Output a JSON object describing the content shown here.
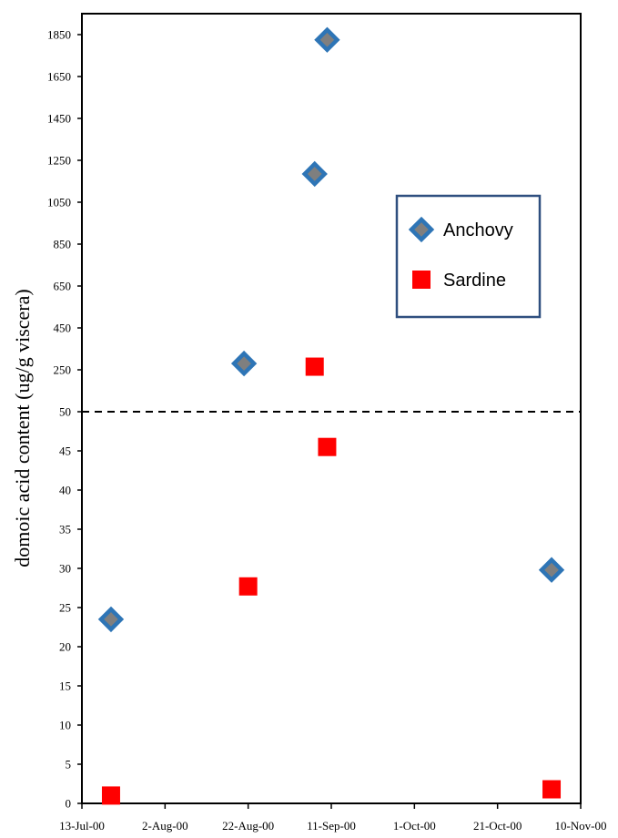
{
  "chart_data": {
    "type": "scatter",
    "ylabel": "domoic acid content (ug/g viscera)",
    "x_axis": {
      "type": "date",
      "range": [
        "2000-07-13",
        "2000-11-10"
      ],
      "ticks": [
        {
          "date": "2000-07-13",
          "label": "13-Jul-00"
        },
        {
          "date": "2000-08-02",
          "label": "2-Aug-00"
        },
        {
          "date": "2000-08-22",
          "label": "22-Aug-00"
        },
        {
          "date": "2000-09-11",
          "label": "11-Sep-00"
        },
        {
          "date": "2000-10-01",
          "label": "1-Oct-00"
        },
        {
          "date": "2000-10-21",
          "label": "21-Oct-00"
        },
        {
          "date": "2000-11-10",
          "label": "10-Nov-00"
        }
      ]
    },
    "y_axis": {
      "type": "broken",
      "break_at": 50,
      "lower_range": [
        0,
        50
      ],
      "upper_range": [
        50,
        1950
      ],
      "lower_ticks": [
        "0",
        "5",
        "10",
        "15",
        "20",
        "25",
        "30",
        "35",
        "40",
        "45",
        "50"
      ],
      "upper_ticks": [
        "250",
        "450",
        "650",
        "850",
        "1050",
        "1250",
        "1450",
        "1650",
        "1850"
      ],
      "break_line": "dashed"
    },
    "legend": {
      "position": "right",
      "entries": [
        "Anchovy",
        "Sardine"
      ]
    },
    "series": [
      {
        "name": "Anchovy",
        "marker": "diamond",
        "color": "#2E75B6",
        "points": [
          {
            "x": "2000-07-20",
            "y": 23.5
          },
          {
            "x": "2000-08-21",
            "y": 280
          },
          {
            "x": "2000-09-07",
            "y": 1185
          },
          {
            "x": "2000-09-10",
            "y": 1825
          },
          {
            "x": "2000-11-03",
            "y": 29.8
          }
        ]
      },
      {
        "name": "Sardine",
        "marker": "square",
        "color": "#FF0000",
        "points": [
          {
            "x": "2000-07-20",
            "y": 1
          },
          {
            "x": "2000-08-22",
            "y": 27.7
          },
          {
            "x": "2000-09-07",
            "y": 265
          },
          {
            "x": "2000-09-10",
            "y": 45.5
          },
          {
            "x": "2000-11-03",
            "y": 1.8
          }
        ]
      }
    ]
  }
}
